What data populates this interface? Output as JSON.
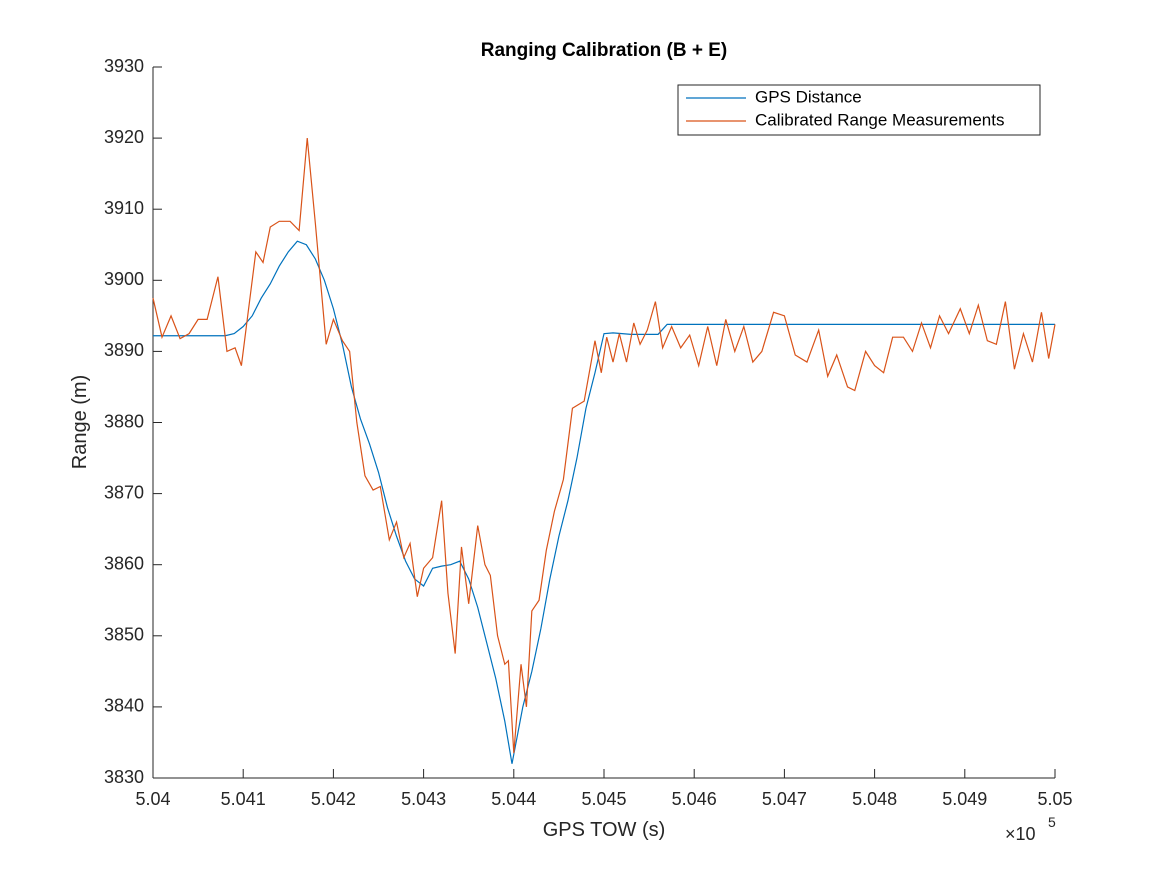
{
  "chart_data": {
    "type": "line",
    "title": "Ranging Calibration (B + E)",
    "x_label": "GPS TOW (s)",
    "y_label": "Range (m)",
    "x_multiplier": {
      "base": "×10",
      "exponent": "5"
    },
    "xlim": [
      504000,
      505000
    ],
    "ylim": [
      3830,
      3930
    ],
    "xticks": [
      {
        "value": 504000,
        "label": "5.04"
      },
      {
        "value": 504100,
        "label": "5.041"
      },
      {
        "value": 504200,
        "label": "5.042"
      },
      {
        "value": 504300,
        "label": "5.043"
      },
      {
        "value": 504400,
        "label": "5.044"
      },
      {
        "value": 504500,
        "label": "5.045"
      },
      {
        "value": 504600,
        "label": "5.046"
      },
      {
        "value": 504700,
        "label": "5.047"
      },
      {
        "value": 504800,
        "label": "5.048"
      },
      {
        "value": 504900,
        "label": "5.049"
      },
      {
        "value": 505000,
        "label": "5.05"
      }
    ],
    "yticks": [
      3830,
      3840,
      3850,
      3860,
      3870,
      3880,
      3890,
      3900,
      3910,
      3920,
      3930
    ],
    "grid": false,
    "legend": "top-right",
    "series": [
      {
        "name": "GPS Distance",
        "color": "#0072bd",
        "x": [
          504000,
          504080,
          504090,
          504100,
          504110,
          504120,
          504130,
          504140,
          504150,
          504160,
          504170,
          504180,
          504190,
          504200,
          504210,
          504220,
          504230,
          504240,
          504250,
          504260,
          504270,
          504280,
          504290,
          504300,
          504310,
          504320,
          504330,
          504340,
          504350,
          504360,
          504370,
          504380,
          504390,
          504398,
          504410,
          504420,
          504430,
          504440,
          504450,
          504460,
          504470,
          504480,
          504490,
          504500,
          504510,
          504530,
          504560,
          504570,
          505000
        ],
        "values": [
          3892.2,
          3892.2,
          3892.5,
          3893.5,
          3895,
          3897.5,
          3899.5,
          3902,
          3904,
          3905.5,
          3905,
          3903,
          3900,
          3896,
          3891,
          3885,
          3880.5,
          3877,
          3873,
          3868,
          3864,
          3860.5,
          3858,
          3857,
          3859.5,
          3859.8,
          3860,
          3860.5,
          3858,
          3854,
          3849,
          3844,
          3838,
          3832,
          3840,
          3845,
          3851,
          3858,
          3864,
          3869,
          3875,
          3882,
          3887,
          3892.5,
          3892.6,
          3892.4,
          3892.4,
          3893.8,
          3893.8
        ]
      },
      {
        "name": "Calibrated Range Measurements",
        "color": "#d95319",
        "x": [
          504000,
          504010,
          504020,
          504030,
          504040,
          504050,
          504060,
          504072,
          504082,
          504091,
          504098,
          504105,
          504114,
          504122,
          504130,
          504140,
          504152,
          504162,
          504171,
          504180,
          504192,
          504200,
          504210,
          504218,
          504226,
          504235,
          504244,
          504252,
          504262,
          504270,
          504278,
          504285,
          504293,
          504300,
          504310,
          504320,
          504327,
          504335,
          504342,
          504350,
          504360,
          504368,
          504374,
          504382,
          504390,
          504394,
          504400,
          504408,
          504414,
          504420,
          504428,
          504436,
          504445,
          504455,
          504465,
          504478,
          504490,
          504497,
          504503,
          504510,
          504517,
          504525,
          504533,
          504540,
          504548,
          504557,
          504565,
          504575,
          504585,
          504595,
          504605,
          504615,
          504625,
          504635,
          504645,
          504655,
          504665,
          504675,
          504688,
          504700,
          504712,
          504725,
          504738,
          504748,
          504758,
          504770,
          504778,
          504790,
          504800,
          504810,
          504820,
          504832,
          504842,
          504852,
          504862,
          504872,
          504882,
          504895,
          504905,
          504915,
          504925,
          504935,
          504945,
          504955,
          504965,
          504975,
          504985,
          504993,
          505000
        ],
        "values": [
          3897.5,
          3892,
          3895,
          3891.8,
          3892.5,
          3894.5,
          3894.5,
          3900.5,
          3890,
          3890.5,
          3888,
          3895,
          3904,
          3902.5,
          3907.5,
          3908.3,
          3908.3,
          3907,
          3920,
          3908,
          3891,
          3894.5,
          3891.5,
          3890,
          3880,
          3872.5,
          3870.5,
          3871,
          3863.5,
          3866,
          3861,
          3863,
          3855.5,
          3859.5,
          3861,
          3869,
          3856,
          3847.5,
          3862.5,
          3854.5,
          3865.5,
          3860,
          3858.5,
          3850,
          3846,
          3846.5,
          3833.5,
          3846,
          3840,
          3853.5,
          3855,
          3862,
          3867.5,
          3872,
          3882,
          3883,
          3891.5,
          3887,
          3892,
          3888.5,
          3892.5,
          3888.5,
          3894,
          3891,
          3893,
          3897,
          3890.5,
          3893.5,
          3890.5,
          3892.3,
          3888,
          3893.5,
          3888,
          3894.5,
          3890,
          3893.5,
          3888.5,
          3890,
          3895.5,
          3895,
          3889.5,
          3888.5,
          3893,
          3886.5,
          3889.5,
          3885,
          3884.5,
          3890,
          3888,
          3887,
          3892,
          3892,
          3890,
          3894,
          3890.5,
          3895,
          3892.5,
          3896,
          3892.5,
          3896.5,
          3891.5,
          3891,
          3897,
          3887.5,
          3892.5,
          3888.5,
          3895.5,
          3889,
          3893.8
        ]
      }
    ]
  }
}
